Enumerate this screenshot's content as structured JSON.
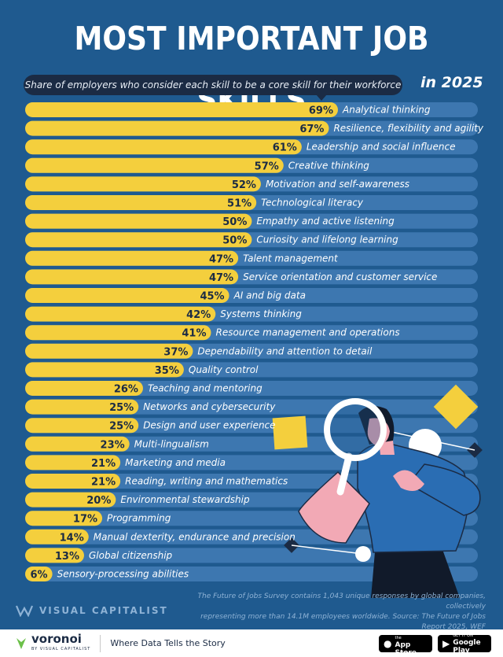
{
  "header": {
    "title": "MOST IMPORTANT JOB SKILLS",
    "subtitle": "Share of employers who consider each skill to be a core skill for their workforce",
    "year": "in 2025"
  },
  "chart_data": {
    "type": "bar",
    "orientation": "horizontal",
    "value_suffix": "%",
    "xlim": [
      0,
      100
    ],
    "categories": [
      "Analytical thinking",
      "Resilience, flexibility and agility",
      "Leadership and social influence",
      "Creative thinking",
      "Motivation and self-awareness",
      "Technological literacy",
      "Empathy and active listening",
      "Curiosity and lifelong learning",
      "Talent management",
      "Service orientation and customer service",
      "AI and big data",
      "Systems thinking",
      "Resource management and operations",
      "Dependability and attention to detail",
      "Quality control",
      "Teaching and mentoring",
      "Networks and cybersecurity",
      "Design and user experience",
      "Multi-lingualism",
      "Marketing and media",
      "Reading, writing and mathematics",
      "Environmental stewardship",
      "Programming",
      "Manual dexterity, endurance and precision",
      "Global citizenship",
      "Sensory-processing abilities"
    ],
    "values": [
      69,
      67,
      61,
      57,
      52,
      51,
      50,
      50,
      47,
      47,
      45,
      42,
      41,
      37,
      35,
      26,
      25,
      25,
      23,
      21,
      21,
      20,
      17,
      14,
      13,
      6
    ],
    "value_labels": [
      "69%",
      "67%",
      "61%",
      "57%",
      "52%",
      "51%",
      "50%",
      "50%",
      "47%",
      "47%",
      "45%",
      "42%",
      "41%",
      "37%",
      "35%",
      "26%",
      "25%",
      "25%",
      "23%",
      "21%",
      "21%",
      "20%",
      "17%",
      "14%",
      "13%",
      "6%"
    ],
    "colors": {
      "bar": "#f4cf3d",
      "track": "#3d77b0",
      "background": "#1f5a8f"
    }
  },
  "footnote": {
    "line1": "The Future of Jobs Survey contains 1,043 unique responses by global companies, collectively",
    "line2": "representing more than 14.1M employees worldwide. Source: The Future of Jobs Report 2025, WEF"
  },
  "brand": {
    "logo": "VISUAL CAPITALIST"
  },
  "footer": {
    "voronoi": "voronoi",
    "voronoi_sub": "BY VISUAL CAPITALIST",
    "tagline": "Where Data Tells the Story",
    "app_store_small": "Download on the",
    "app_store_big": "App Store",
    "google_small": "GET IT ON",
    "google_big": "Google Play"
  }
}
